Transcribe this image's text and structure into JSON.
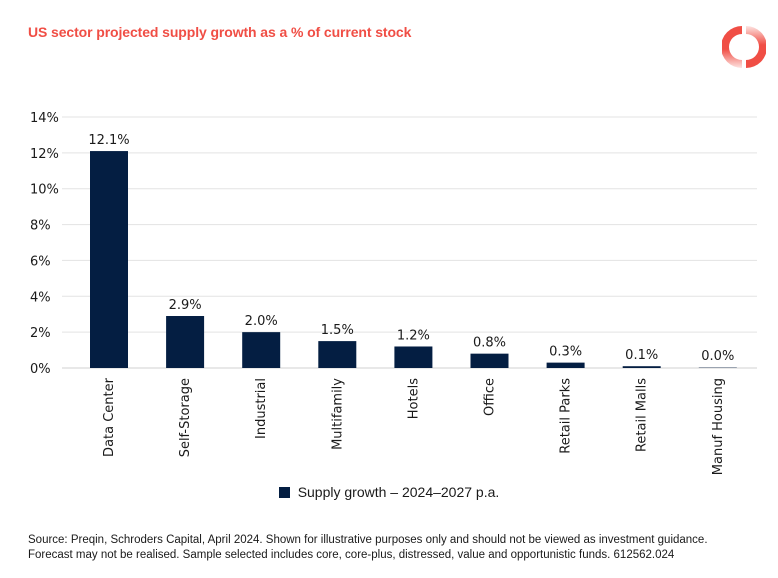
{
  "header": {
    "title": "US sector projected supply growth as a % of current stock",
    "logo_icon": "donut-ring-logo-icon"
  },
  "colors": {
    "title": "#f04e45",
    "bar": "#041e42",
    "grid": "#e3e3e3",
    "logo": "#f04e45"
  },
  "chart_data": {
    "type": "bar",
    "title": "US sector projected supply growth as a % of current stock",
    "xlabel": "",
    "ylabel": "",
    "categories": [
      "Data Center",
      "Self-Storage",
      "Industrial",
      "Multifamily",
      "Hotels",
      "Office",
      "Retail Parks",
      "Retail Malls",
      "Manuf Housing"
    ],
    "series": [
      {
        "name": "Supply growth – 2024–2027 p.a.",
        "values": [
          12.1,
          2.9,
          2.0,
          1.5,
          1.2,
          0.8,
          0.3,
          0.1,
          0.0
        ],
        "data_labels": [
          "12.1%",
          "2.9%",
          "2.0%",
          "1.5%",
          "1.2%",
          "0.8%",
          "0.3%",
          "0.1%",
          "0.0%"
        ]
      }
    ],
    "ylim": [
      0,
      14
    ],
    "yticks": [
      0,
      2,
      4,
      6,
      8,
      10,
      12,
      14
    ],
    "ytick_labels": [
      "0%",
      "2%",
      "4%",
      "6%",
      "8%",
      "10%",
      "12%",
      "14%"
    ],
    "grid": true,
    "legend": "bottom-center",
    "x_label_rotation": "vertical"
  },
  "legend": {
    "label": "Supply growth – 2024–2027 p.a."
  },
  "footnote": {
    "lines": [
      "Source: Preqin, Schroders Capital, April 2024. Shown for illustrative purposes only and should not be viewed as investment guidance.",
      "Forecast may not be realised. Sample selected includes core, core-plus, distressed, value and opportunistic funds. 612562.024"
    ]
  }
}
